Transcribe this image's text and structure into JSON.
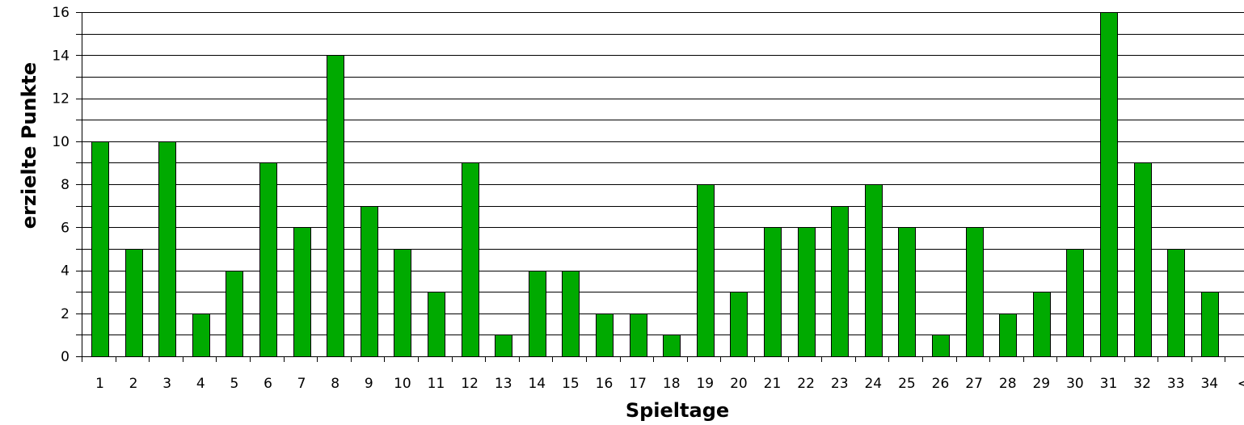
{
  "chart_data": {
    "type": "bar",
    "title": "",
    "xlabel": "Spieltage",
    "ylabel": "erzielte Punkte",
    "categories": [
      "1",
      "2",
      "3",
      "4",
      "5",
      "6",
      "7",
      "8",
      "9",
      "10",
      "11",
      "12",
      "13",
      "14",
      "15",
      "16",
      "17",
      "18",
      "19",
      "20",
      "21",
      "22",
      "23",
      "24",
      "25",
      "26",
      "27",
      "28",
      "29",
      "30",
      "31",
      "32",
      "33",
      "34",
      "<"
    ],
    "values": [
      10,
      5,
      10,
      2,
      4,
      9,
      6,
      14,
      7,
      5,
      3,
      9,
      1,
      4,
      4,
      2,
      2,
      1,
      8,
      3,
      6,
      6,
      7,
      8,
      6,
      1,
      6,
      2,
      3,
      5,
      16,
      9,
      5,
      3,
      null
    ],
    "ylim": [
      0,
      16
    ],
    "yticks": [
      0,
      2,
      4,
      6,
      8,
      10,
      12,
      14,
      16
    ],
    "grid": true,
    "legend": "none",
    "bar_color": "#00aa00"
  }
}
